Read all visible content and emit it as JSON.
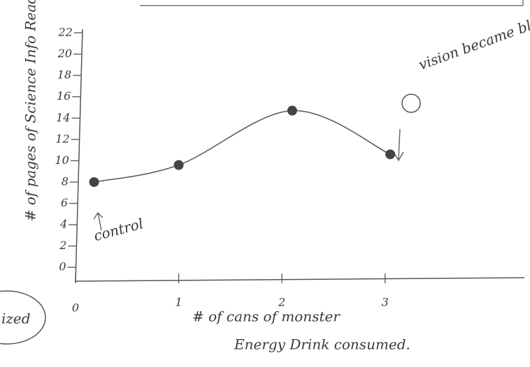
{
  "chart_data": {
    "type": "line",
    "y_label": "# of pages of Science Info Read",
    "x_label_line1": "# of cans of monster",
    "x_label_line2": "Energy Drink consumed.",
    "annotations": [
      "control",
      "vision became blurred.",
      "ized"
    ],
    "x": [
      0.18,
      1.0,
      2.1,
      3.05
    ],
    "values": [
      8,
      9.6,
      14.7,
      10.6
    ],
    "color": "#555555",
    "xlim": [
      0,
      4.35
    ],
    "xticks": [
      0,
      1,
      2,
      3
    ],
    "ylim": [
      -1.1,
      22
    ],
    "yticks": [
      0,
      2,
      4,
      6,
      8,
      10,
      12,
      14,
      16,
      18,
      20,
      22
    ]
  }
}
